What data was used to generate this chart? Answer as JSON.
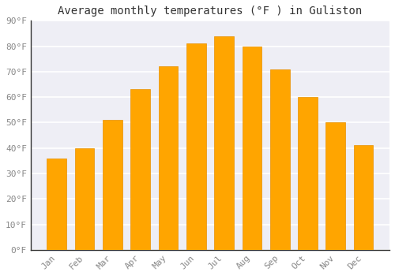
{
  "title": "Average monthly temperatures (°F ) in Guliston",
  "months": [
    "Jan",
    "Feb",
    "Mar",
    "Apr",
    "May",
    "Jun",
    "Jul",
    "Aug",
    "Sep",
    "Oct",
    "Nov",
    "Dec"
  ],
  "values": [
    36,
    40,
    51,
    63,
    72,
    81,
    84,
    80,
    71,
    60,
    50,
    41
  ],
  "bar_color": "#FFA500",
  "bar_edge_color": "#E89000",
  "background_color": "#FFFFFF",
  "plot_bg_color": "#EEEEF5",
  "grid_color": "#FFFFFF",
  "ylim": [
    0,
    90
  ],
  "yticks": [
    0,
    10,
    20,
    30,
    40,
    50,
    60,
    70,
    80,
    90
  ],
  "ytick_labels": [
    "0°F",
    "10°F",
    "20°F",
    "30°F",
    "40°F",
    "50°F",
    "60°F",
    "70°F",
    "80°F",
    "90°F"
  ],
  "title_fontsize": 10,
  "tick_fontsize": 8,
  "font_family": "monospace",
  "tick_color": "#888888",
  "title_color": "#333333"
}
